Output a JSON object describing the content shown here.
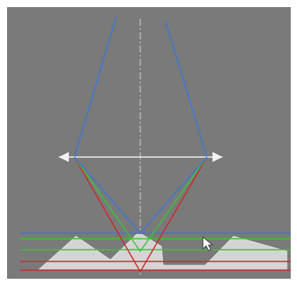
{
  "diagram": {
    "kind": "focus-variation optical ray diagram",
    "labels": [],
    "colors": {
      "background": "#7a7a7a",
      "frame": "#ffffff",
      "optical_axis": "#d8d8d8",
      "lens": "#f0f0f0",
      "surface_fill": "#d4d4d4",
      "surface_stroke": "#e4e4e4",
      "ray_blue": "#4a78c0",
      "ray_green": "#38c438",
      "ray_red": "#cc2a2a",
      "cursor": "#ffffff"
    },
    "icons": [
      "arrow-pointer-icon"
    ]
  }
}
